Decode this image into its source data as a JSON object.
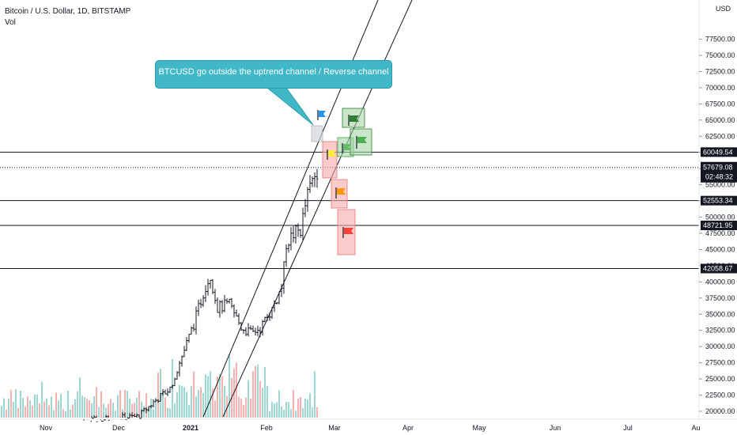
{
  "legend": {
    "symbol": "Bitcoin / U.S. Dollar, 1D, BITSTAMP",
    "volume": "Vol"
  },
  "callout": {
    "text": "BTCUSD go outside the uptrend channel / Reverse channel"
  },
  "chart_data": {
    "type": "candlestick",
    "currency": "USD",
    "y_ticks": [
      20000,
      22500,
      25000,
      27500,
      30000,
      32500,
      35000,
      37500,
      40000,
      42500,
      45000,
      47500,
      50000,
      52500,
      55000,
      57500,
      60000,
      62500,
      65000,
      67500,
      70000,
      72500,
      75000,
      77500
    ],
    "y_tick_labels": [
      "20000.00",
      "22500.00",
      "25000.00",
      "27500.00",
      "30000.00",
      "32500.00",
      "35000.00",
      "37500.00",
      "40000.00",
      "42500.00",
      "45000.00",
      "47500.00",
      "50000.00",
      "52500.00",
      "55000.00",
      "57500.00",
      "60000.00",
      "62500.00",
      "65000.00",
      "67500.00",
      "70000.00",
      "72500.00",
      "75000.00",
      "77500.00"
    ],
    "ylim": [
      19500,
      78200
    ],
    "x_labels": [
      "Nov",
      "Dec",
      "2021",
      "Feb",
      "Mar",
      "Apr",
      "May",
      "Jun",
      "Jul",
      "Au"
    ],
    "price_levels": [
      {
        "value": 60049.54,
        "label": "60049.54"
      },
      {
        "value": 52553.34,
        "label": "52553.34"
      },
      {
        "value": 48721.95,
        "label": "48721.95"
      },
      {
        "value": 42058.67,
        "label": "42058.67"
      }
    ],
    "current_price": {
      "value": 57679.08,
      "label": "57679.08",
      "countdown": "02:48:32"
    },
    "grid": false
  }
}
